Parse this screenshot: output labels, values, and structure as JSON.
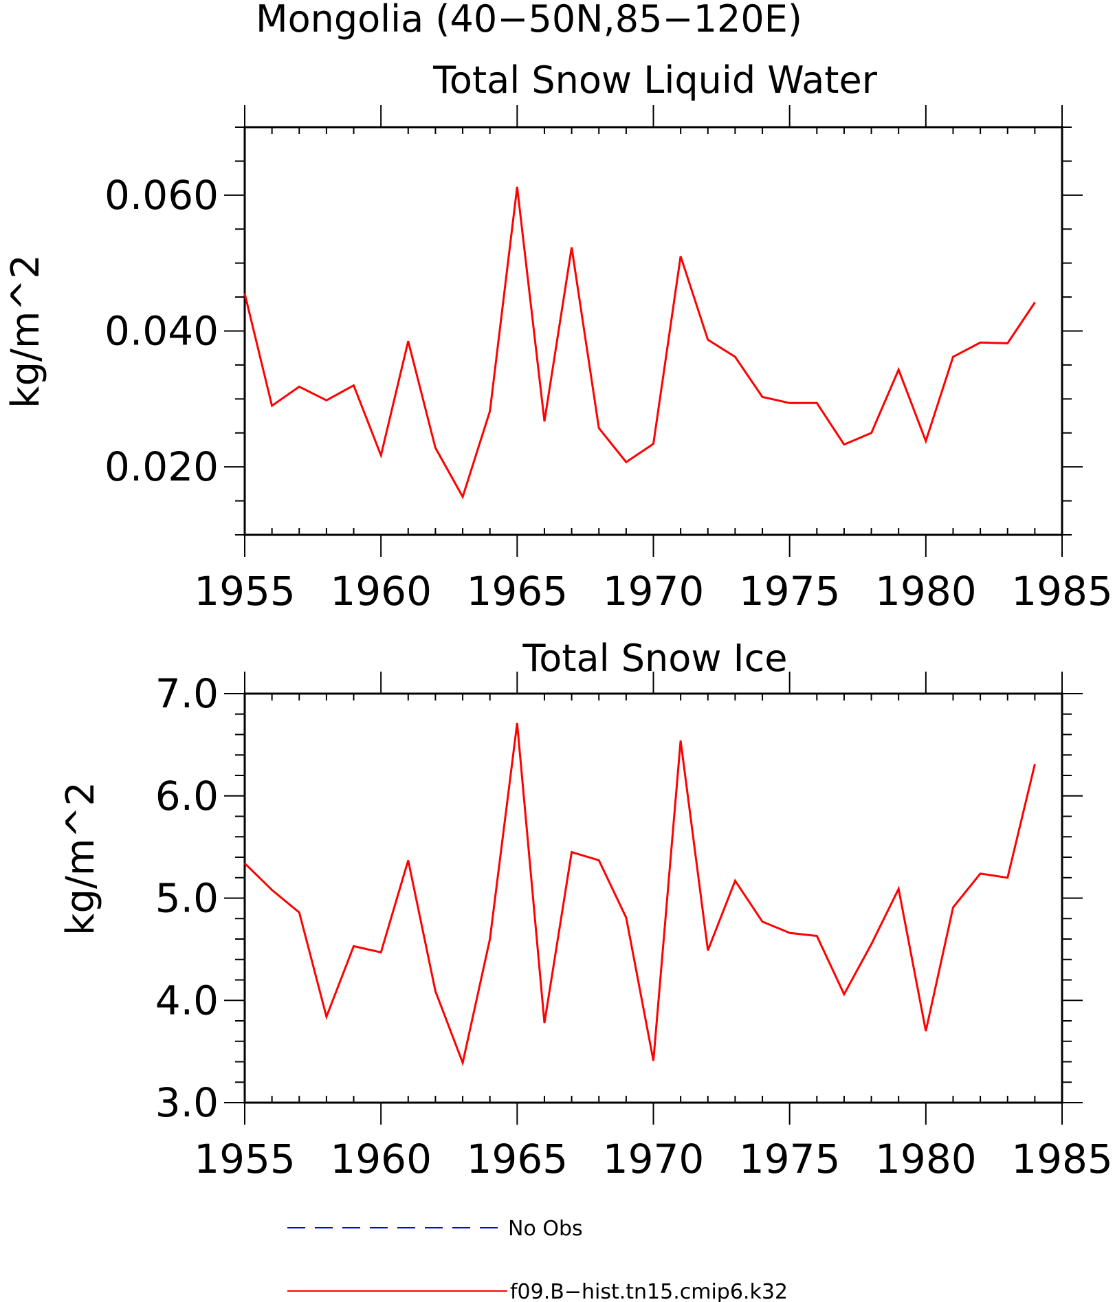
{
  "figure": {
    "title": "Mongolia (40−50N,85−120E)"
  },
  "chart_data": [
    {
      "type": "line",
      "title": "Total Snow Liquid Water",
      "xlabel": "",
      "ylabel": "kg/m^2",
      "xlim": [
        1955,
        1985
      ],
      "ylim": [
        0.01,
        0.07
      ],
      "xticks": [
        1955,
        1960,
        1965,
        1970,
        1975,
        1980,
        1985
      ],
      "yticks": [
        0.02,
        0.04,
        0.06
      ],
      "ytick_labels": [
        "0.020",
        "0.040",
        "0.060"
      ],
      "y_minor_step": 0.005,
      "x_minor_step": 1,
      "series": [
        {
          "name": "f09.B−hist.tn15.cmip6.k32",
          "color": "#ff0000",
          "x": [
            1955,
            1956,
            1957,
            1958,
            1959,
            1960,
            1961,
            1962,
            1963,
            1964,
            1965,
            1966,
            1967,
            1968,
            1969,
            1970,
            1971,
            1972,
            1973,
            1974,
            1975,
            1976,
            1977,
            1978,
            1979,
            1980,
            1981,
            1982,
            1983,
            1984
          ],
          "values": [
            0.0455,
            0.029,
            0.0318,
            0.0298,
            0.032,
            0.0217,
            0.0385,
            0.0228,
            0.0156,
            0.0282,
            0.0612,
            0.0267,
            0.0523,
            0.0257,
            0.0207,
            0.0234,
            0.051,
            0.0387,
            0.0362,
            0.0303,
            0.0294,
            0.0294,
            0.0233,
            0.025,
            0.0343,
            0.0238,
            0.0362,
            0.0383,
            0.0382,
            0.0442
          ]
        }
      ]
    },
    {
      "type": "line",
      "title": "Total Snow Ice",
      "xlabel": "",
      "ylabel": "kg/m^2",
      "xlim": [
        1955,
        1985
      ],
      "ylim": [
        3.0,
        7.0
      ],
      "xticks": [
        1955,
        1960,
        1965,
        1970,
        1975,
        1980,
        1985
      ],
      "yticks": [
        3.0,
        4.0,
        5.0,
        6.0,
        7.0
      ],
      "ytick_labels": [
        "3.0",
        "4.0",
        "5.0",
        "6.0",
        "7.0"
      ],
      "y_minor_step": 0.2,
      "x_minor_step": 1,
      "series": [
        {
          "name": "f09.B−hist.tn15.cmip6.k32",
          "color": "#ff0000",
          "x": [
            1955,
            1956,
            1957,
            1958,
            1959,
            1960,
            1961,
            1962,
            1963,
            1964,
            1965,
            1966,
            1967,
            1968,
            1969,
            1970,
            1971,
            1972,
            1973,
            1974,
            1975,
            1976,
            1977,
            1978,
            1979,
            1980,
            1981,
            1982,
            1983,
            1984
          ],
          "values": [
            5.34,
            5.08,
            4.86,
            3.84,
            4.53,
            4.47,
            5.37,
            4.09,
            3.39,
            4.6,
            6.71,
            3.78,
            5.45,
            5.37,
            4.81,
            3.41,
            6.54,
            4.49,
            5.17,
            4.77,
            4.66,
            4.63,
            4.06,
            4.55,
            5.09,
            3.7,
            4.91,
            5.24,
            5.2,
            6.31
          ]
        }
      ]
    }
  ],
  "legend": {
    "placement": "bottom-left",
    "entries": [
      {
        "label": "No Obs",
        "color": "#0000ff",
        "style": "dashed"
      },
      {
        "label": "f09.B−hist.tn15.cmip6.k32",
        "color": "#ff0000",
        "style": "solid"
      }
    ]
  }
}
